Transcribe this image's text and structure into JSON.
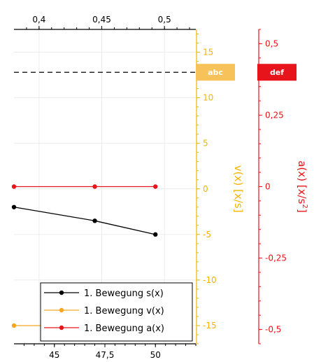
{
  "chart_data": {
    "type": "line",
    "axes": {
      "top_x": {
        "range": [
          0.38,
          0.525
        ],
        "ticks": [
          0.4,
          0.45,
          0.5
        ],
        "tick_labels": [
          "0,4",
          "0,45",
          "0,5"
        ]
      },
      "bottom_x": {
        "range": [
          43.0,
          52.0
        ],
        "ticks": [
          45,
          47.5,
          50
        ],
        "tick_labels": [
          "45",
          "47,5",
          "50"
        ]
      },
      "y_v": {
        "label": "v(x) [x/s]",
        "range": [
          -17,
          17.5
        ],
        "ticks": [
          15,
          10,
          5,
          0,
          -5,
          -10,
          -15
        ],
        "tick_labels": [
          "15",
          "10",
          "5",
          "0",
          "-5",
          "-10",
          "-15"
        ],
        "color": "#f5b400"
      },
      "y_a": {
        "label_main": "a(x) [x/s",
        "label_sup": "2",
        "label_end": "]",
        "range": [
          -0.55,
          0.55
        ],
        "ticks": [
          0.5,
          0.25,
          0,
          -0.25,
          -0.5
        ],
        "tick_labels": [
          "0,5",
          "0,25",
          "0",
          "-0,25",
          "-0,5"
        ],
        "color": "#e8141b"
      },
      "grid": true
    },
    "series": [
      {
        "name": "1. Bewegung s(x)",
        "color": "#000000",
        "axis": "y_v",
        "x": [
          43.0,
          47.0,
          50.0
        ],
        "y": [
          -2.0,
          -3.5,
          -5.0
        ]
      },
      {
        "name": "1. Bewegung v(x)",
        "color": "#f5a623",
        "axis": "y_v",
        "x": [
          43.0,
          50.0
        ],
        "y": [
          -15.0,
          -15.0
        ]
      },
      {
        "name": "1. Bewegung a(x)",
        "color": "#e8141b",
        "axis": "y_a",
        "x": [
          43.0,
          47.0,
          50.0
        ],
        "y": [
          0.0,
          0.0,
          0.0
        ]
      }
    ],
    "reference_line": {
      "y": 0.4,
      "axis": "y_a",
      "style": "dashed",
      "color": "#000000"
    },
    "tags": [
      {
        "text": "abc",
        "color": "#f8c25a",
        "axis": "y_v"
      },
      {
        "text": "def",
        "color": "#e8141b",
        "axis": "y_a"
      }
    ],
    "legend_position": "bottom-left"
  }
}
